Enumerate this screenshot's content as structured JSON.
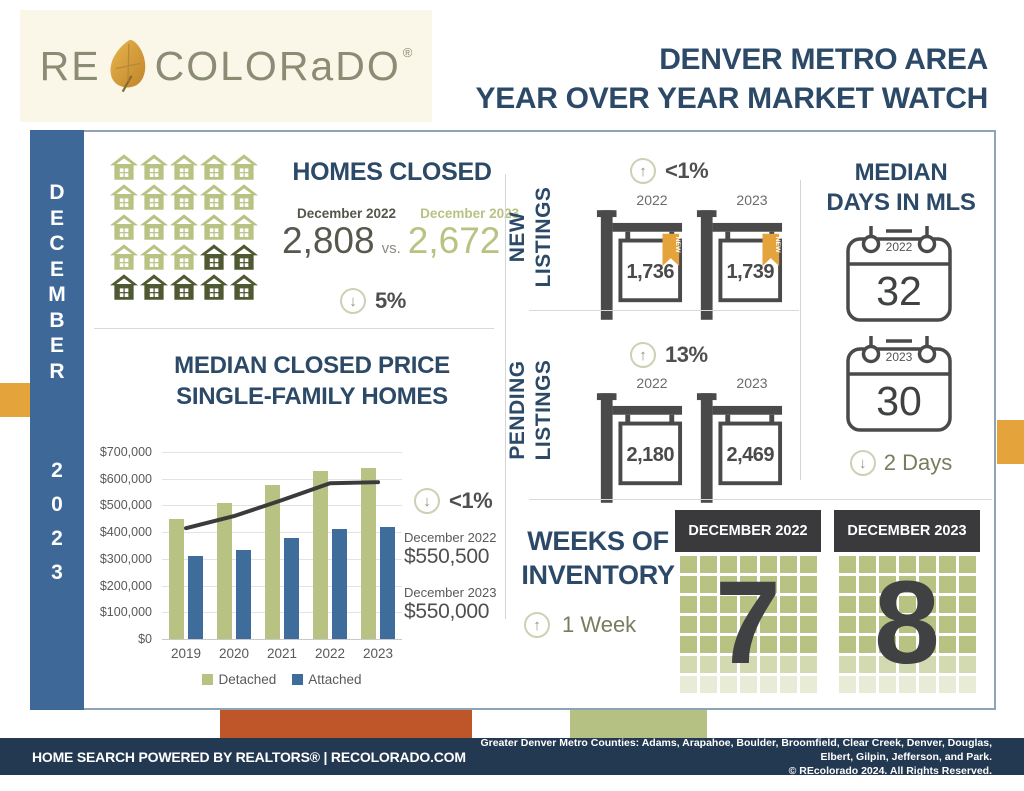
{
  "header": {
    "logo": {
      "re": "RE",
      "colorado": "COLORaDO",
      "registered": "®"
    },
    "title_line1": "DENVER METRO AREA",
    "title_line2": "YEAR OVER YEAR MARKET WATCH"
  },
  "sidebar": {
    "month": "DECEMBER",
    "year": "2023"
  },
  "homes_closed": {
    "title": "HOMES CLOSED",
    "label_2022": "December 2022",
    "label_2023": "December 2023",
    "value_2022": "2,808",
    "vs": "vs.",
    "value_2023": "2,672",
    "change": "5%",
    "direction": "down",
    "houses": {
      "rows": [
        [
          "light",
          "light",
          "light",
          "light",
          "light"
        ],
        [
          "light",
          "light",
          "light",
          "light",
          "light"
        ],
        [
          "light",
          "light",
          "light",
          "light",
          "light"
        ],
        [
          "light",
          "light",
          "light",
          "dark",
          "dark"
        ],
        [
          "dark",
          "dark",
          "dark",
          "dark",
          "dark"
        ]
      ]
    }
  },
  "median_price": {
    "title_line1": "MEDIAN CLOSED PRICE",
    "title_line2": "SINGLE-FAMILY HOMES",
    "change": "<1%",
    "direction": "down",
    "stat_2022_label": "December 2022",
    "stat_2022_value": "$550,500",
    "stat_2023_label": "December 2023",
    "stat_2023_value": "$550,000"
  },
  "chart_data": {
    "type": "bar",
    "title": "MEDIAN CLOSED PRICE SINGLE-FAMILY HOMES",
    "categories": [
      "2019",
      "2020",
      "2021",
      "2022",
      "2023"
    ],
    "series": [
      {
        "name": "Detached",
        "kind": "bar",
        "color": "#b8c383",
        "values": [
          450000,
          510000,
          575000,
          630000,
          640000
        ]
      },
      {
        "name": "Attached",
        "kind": "bar",
        "color": "#3e6d9c",
        "values": [
          310000,
          335000,
          380000,
          410000,
          420000
        ]
      },
      {
        "name": "Overall trend",
        "kind": "line",
        "color": "#3b3b3b",
        "values": [
          415000,
          460000,
          520000,
          583000,
          587000
        ]
      }
    ],
    "yticks": [
      "$700,000",
      "$600,000",
      "$500,000",
      "$400,000",
      "$300,000",
      "$200,000",
      "$100,000",
      "$0"
    ],
    "ylim": [
      0,
      700000
    ],
    "grid": true,
    "legend": [
      "Detached",
      "Attached"
    ],
    "legend_position": "bottom"
  },
  "new_listings": {
    "label_line1": "NEW",
    "label_line2": "LISTINGS",
    "change": "<1%",
    "direction": "up",
    "items": [
      {
        "year": "2022",
        "value": "1,736",
        "ribbon_label": "NEW"
      },
      {
        "year": "2023",
        "value": "1,739",
        "ribbon_label": "NEW"
      }
    ]
  },
  "pending_listings": {
    "label_line1": "PENDING",
    "label_line2": "LISTINGS",
    "change": "13%",
    "direction": "up",
    "items": [
      {
        "year": "2022",
        "value": "2,180"
      },
      {
        "year": "2023",
        "value": "2,469"
      }
    ]
  },
  "median_days": {
    "title_line1": "MEDIAN",
    "title_line2": "DAYS IN MLS",
    "items": [
      {
        "year": "2022",
        "value": "32"
      },
      {
        "year": "2023",
        "value": "30"
      }
    ],
    "change": "2 Days",
    "direction": "down"
  },
  "weeks_inventory": {
    "title_line1": "WEEKS OF",
    "title_line2": "INVENTORY",
    "change": "1 Week",
    "direction": "up",
    "items": [
      {
        "header": "DECEMBER 2022",
        "value": "7"
      },
      {
        "header": "DECEMBER 2023",
        "value": "8"
      }
    ],
    "grid_columns": 7,
    "grid_rows": 7
  },
  "footer": {
    "left": "HOME SEARCH POWERED BY REALTORS® | RECOLORADO.COM",
    "right_line1": "Greater Denver Metro Counties: Adams, Arapahoe, Boulder, Broomfield, Clear Creek, Denver, Douglas, Elbert, Gilpin, Jefferson, and Park.",
    "right_line2": "© REcolorado 2024. All Rights Reserved."
  },
  "colors": {
    "title_blue": "#2c4a67",
    "sidebar_blue": "#3e6898",
    "footer_navy": "#233952",
    "sage_green": "#b8c383",
    "dark_olive": "#4e5831",
    "rust_orange": "#bf5629",
    "amber_orange": "#e5a33c",
    "sign_gray": "#4a4a4a",
    "olive_text": "#797c5e",
    "arrow_ring": "#cdd1b4",
    "arrow_glyph": "#8e9377",
    "bar_blue": "#3e6d9c",
    "trend_line": "#3b3b3b",
    "logo_green": "#8a8c74",
    "logo_cream_bg": "#fbf7e8"
  }
}
